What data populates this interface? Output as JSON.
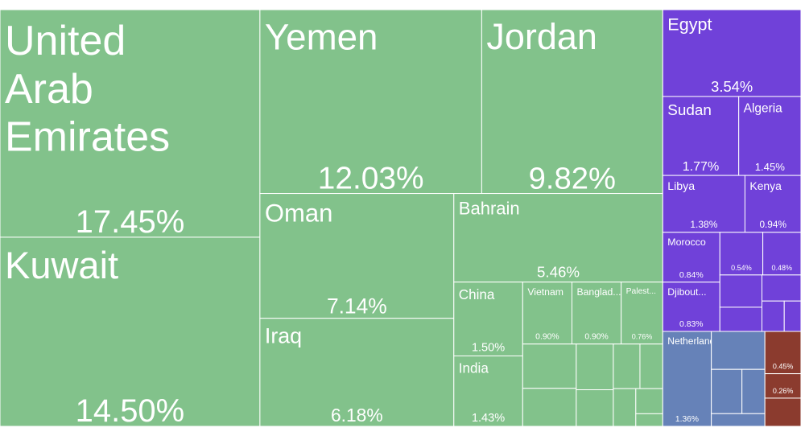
{
  "chart_data": {
    "type": "treemap",
    "series": [
      {
        "color": "#82c28b",
        "categories": [
          "United Arab Emirates",
          "Kuwait",
          "Yemen",
          "Jordan",
          "Oman",
          "Iraq",
          "Bahrain",
          "China",
          "India",
          "Vietnam",
          "Banglad...",
          "Palest...",
          null,
          null,
          null,
          null,
          null,
          null,
          null,
          null,
          null
        ],
        "values": [
          17.45,
          14.5,
          12.03,
          9.82,
          7.14,
          6.18,
          5.46,
          1.5,
          1.43,
          0.9,
          0.9,
          0.76,
          0.7,
          0.6,
          0.5,
          0.4,
          0.35,
          0.3,
          0.25,
          0.2,
          0.1
        ],
        "value_labels": [
          "17.45%",
          "14.50%",
          "12.03%",
          "9.82%",
          "7.14%",
          "6.18%",
          "5.46%",
          "1.50%",
          "1.43%",
          "0.90%",
          "0.90%",
          "0.76%",
          null,
          null,
          null,
          null,
          null,
          null,
          null,
          null,
          null
        ]
      },
      {
        "color": "#7041d9",
        "categories": [
          "Egypt",
          "Sudan",
          "Algeria",
          "Libya",
          "Kenya",
          "Morocco",
          "Djibout...",
          null,
          null,
          null,
          null,
          null,
          null,
          null
        ],
        "values": [
          3.54,
          1.77,
          1.45,
          1.38,
          0.94,
          0.84,
          0.83,
          0.54,
          0.48,
          0.4,
          0.3,
          0.3,
          0.2,
          0.15
        ],
        "value_labels": [
          "3.54%",
          "1.77%",
          "1.45%",
          "1.38%",
          "0.94%",
          "0.84%",
          "0.83%",
          "0.54%",
          "0.48%",
          null,
          null,
          null,
          null,
          null
        ]
      },
      {
        "color": "#6682b8",
        "categories": [
          "Netherland...",
          null,
          null,
          null,
          null
        ],
        "values": [
          1.36,
          0.6,
          0.4,
          0.3,
          0.2
        ],
        "value_labels": [
          "1.36%",
          null,
          null,
          null,
          null
        ]
      },
      {
        "color": "#8b3b2e",
        "categories": [
          null,
          null,
          null
        ],
        "values": [
          0.45,
          0.26,
          0.3
        ],
        "value_labels": [
          "0.45%",
          "0.26%",
          null
        ]
      }
    ]
  }
}
